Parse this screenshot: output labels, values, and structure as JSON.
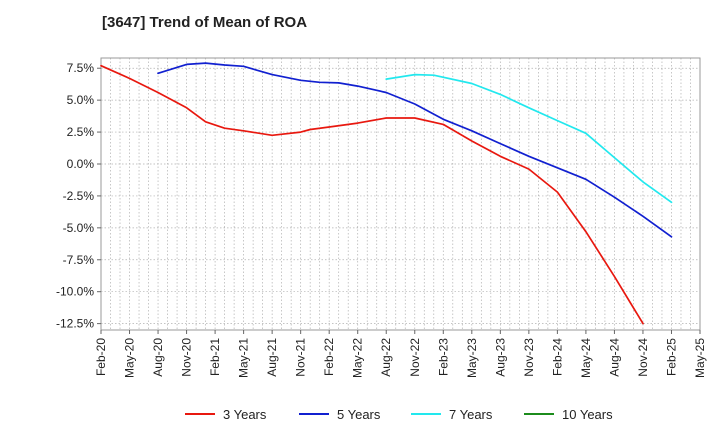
{
  "chart_data": {
    "type": "line",
    "title": "[3647]  Trend of Mean of ROA",
    "xlabel": "",
    "ylabel": "",
    "categories": [
      "Feb-20",
      "May-20",
      "Aug-20",
      "Nov-20",
      "Feb-21",
      "May-21",
      "Aug-21",
      "Nov-21",
      "Feb-22",
      "May-22",
      "Aug-22",
      "Nov-22",
      "Feb-23",
      "May-23",
      "Aug-23",
      "Nov-23",
      "Feb-24",
      "May-24",
      "Aug-24",
      "Nov-24",
      "Feb-25",
      "May-25"
    ],
    "yticks": [
      7.5,
      5.0,
      2.5,
      0.0,
      -2.5,
      -5.0,
      -7.5,
      -10.0,
      -12.5
    ],
    "ytick_labels": [
      "7.5%",
      "5.0%",
      "2.5%",
      "0.0%",
      "-2.5%",
      "-5.0%",
      "-7.5%",
      "-10.0%",
      "-12.5%"
    ],
    "ylim": [
      -13.0,
      8.3
    ],
    "xlim_months": [
      0,
      63
    ],
    "grid": true,
    "legend_position": "bottom",
    "series": [
      {
        "name": "3 Years",
        "color": "#e8180f",
        "points": [
          [
            0,
            7.7
          ],
          [
            3,
            6.7
          ],
          [
            6,
            5.6
          ],
          [
            9,
            4.4
          ],
          [
            11,
            3.3
          ],
          [
            13,
            2.8
          ],
          [
            15,
            2.6
          ],
          [
            18,
            2.25
          ],
          [
            21,
            2.5
          ],
          [
            22,
            2.7
          ],
          [
            24,
            2.9
          ],
          [
            27,
            3.2
          ],
          [
            30,
            3.6
          ],
          [
            33,
            3.6
          ],
          [
            36,
            3.1
          ],
          [
            39,
            1.8
          ],
          [
            42,
            0.6
          ],
          [
            45,
            -0.4
          ],
          [
            48,
            -2.2
          ],
          [
            51,
            -5.3
          ],
          [
            54,
            -8.8
          ],
          [
            57,
            -12.5
          ]
        ]
      },
      {
        "name": "5 Years",
        "color": "#1120d0",
        "points": [
          [
            6,
            7.1
          ],
          [
            9,
            7.8
          ],
          [
            11,
            7.9
          ],
          [
            13,
            7.75
          ],
          [
            15,
            7.65
          ],
          [
            18,
            7.0
          ],
          [
            21,
            6.55
          ],
          [
            23,
            6.4
          ],
          [
            25,
            6.35
          ],
          [
            27,
            6.1
          ],
          [
            30,
            5.6
          ],
          [
            33,
            4.7
          ],
          [
            36,
            3.5
          ],
          [
            39,
            2.6
          ],
          [
            42,
            1.6
          ],
          [
            45,
            0.6
          ],
          [
            48,
            -0.3
          ],
          [
            51,
            -1.2
          ],
          [
            54,
            -2.6
          ],
          [
            57,
            -4.1
          ],
          [
            60,
            -5.7
          ]
        ]
      },
      {
        "name": "7 Years",
        "color": "#22e8ee",
        "points": [
          [
            30,
            6.65
          ],
          [
            33,
            7.0
          ],
          [
            35,
            6.95
          ],
          [
            39,
            6.3
          ],
          [
            42,
            5.45
          ],
          [
            45,
            4.4
          ],
          [
            48,
            3.4
          ],
          [
            51,
            2.4
          ],
          [
            54,
            0.5
          ],
          [
            57,
            -1.4
          ],
          [
            60,
            -3.0
          ]
        ]
      },
      {
        "name": "10 Years",
        "color": "#1c8c1c",
        "points": []
      }
    ]
  }
}
